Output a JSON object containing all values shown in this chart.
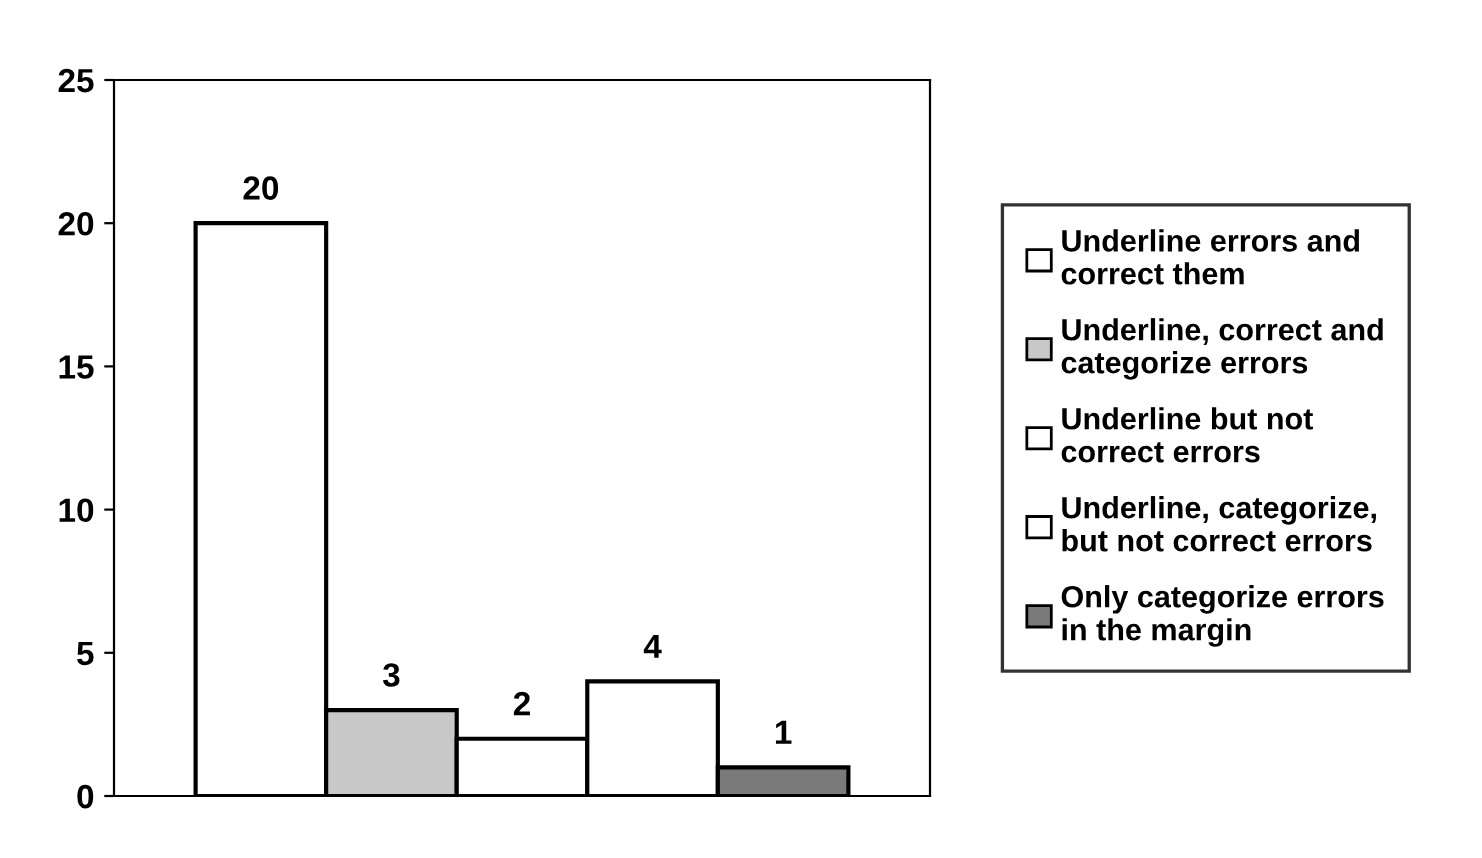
{
  "chart_data": {
    "type": "bar",
    "categories": [
      null
    ],
    "series": [
      {
        "name": "Underline errors and correct them",
        "color": "#ffffff",
        "values": [
          20
        ]
      },
      {
        "name": "Underline, correct and categorize errors",
        "color": "#c8c8c8",
        "values": [
          3
        ]
      },
      {
        "name": "Underline but not correct errors",
        "color": "#ffffff",
        "values": [
          2
        ]
      },
      {
        "name": "Underline, categorize, but not correct errors",
        "color": "#ffffff",
        "values": [
          4
        ]
      },
      {
        "name": "Only categorize errors in the margin",
        "color": "#7a7a7a",
        "values": [
          1
        ]
      }
    ],
    "ylim": [
      0,
      25
    ],
    "yticks": [
      0,
      5,
      10,
      15,
      20,
      25
    ],
    "data_labels": true,
    "grid": false,
    "legend": "right"
  }
}
